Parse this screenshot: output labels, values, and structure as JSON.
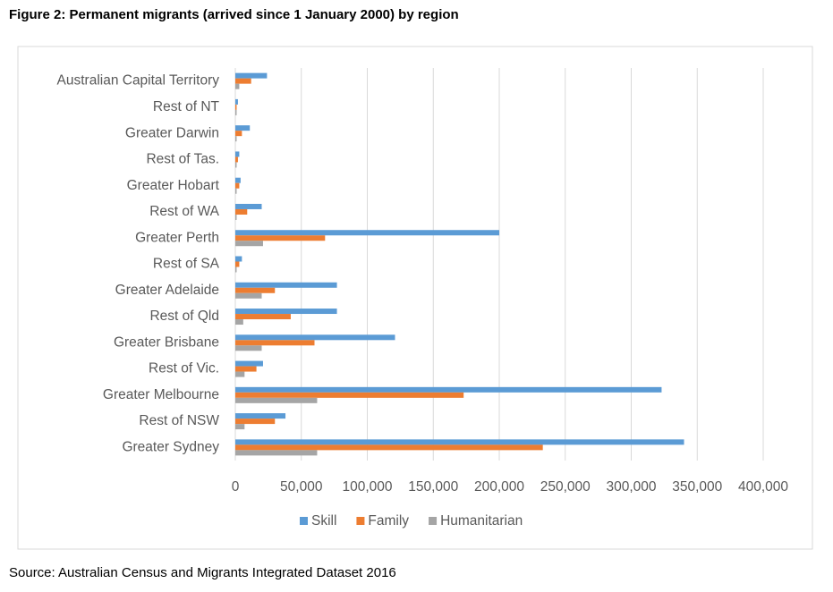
{
  "chart_data": {
    "type": "hbar",
    "title": "Figure 2: Permanent migrants (arrived since 1 January 2000) by region",
    "source": "Source: Australian Census and Migrants Integrated Dataset 2016",
    "categories": [
      "Australian Capital Territory",
      "Rest of NT",
      "Greater Darwin",
      "Rest of Tas.",
      "Greater Hobart",
      "Rest of WA",
      "Greater Perth",
      "Rest of SA",
      "Greater Adelaide",
      "Rest of Qld",
      "Greater Brisbane",
      "Rest of Vic.",
      "Greater Melbourne",
      "Rest of NSW",
      "Greater Sydney"
    ],
    "series": [
      {
        "name": "Skill",
        "color": "#5b9bd5",
        "values": [
          24000,
          2000,
          11000,
          3000,
          4000,
          20000,
          200000,
          5000,
          77000,
          77000,
          121000,
          21000,
          323000,
          38000,
          340000
        ]
      },
      {
        "name": "Family",
        "color": "#ed7d31",
        "values": [
          12000,
          1000,
          5000,
          2000,
          3000,
          9000,
          68000,
          3000,
          30000,
          42000,
          60000,
          16000,
          173000,
          30000,
          233000
        ]
      },
      {
        "name": "Humanitarian",
        "color": "#a5a5a5",
        "values": [
          3000,
          1000,
          1000,
          1000,
          1000,
          1000,
          21000,
          1000,
          20000,
          6000,
          20000,
          7000,
          62000,
          7000,
          62000
        ]
      }
    ],
    "xlim": [
      0,
      400000
    ],
    "xticks": [
      0,
      {
        "value": 50000,
        "label": "50,000"
      },
      {
        "value": 100000,
        "label": "100,000"
      },
      {
        "value": 150000,
        "label": "150,000"
      },
      {
        "value": 200000,
        "label": "200,000"
      },
      {
        "value": 250000,
        "label": "250,000"
      },
      {
        "value": 300000,
        "label": "300,000"
      },
      {
        "value": 350000,
        "label": "350,000"
      },
      {
        "value": 400000,
        "label": "400,000"
      }
    ],
    "grid": true,
    "legend": "bottom"
  }
}
